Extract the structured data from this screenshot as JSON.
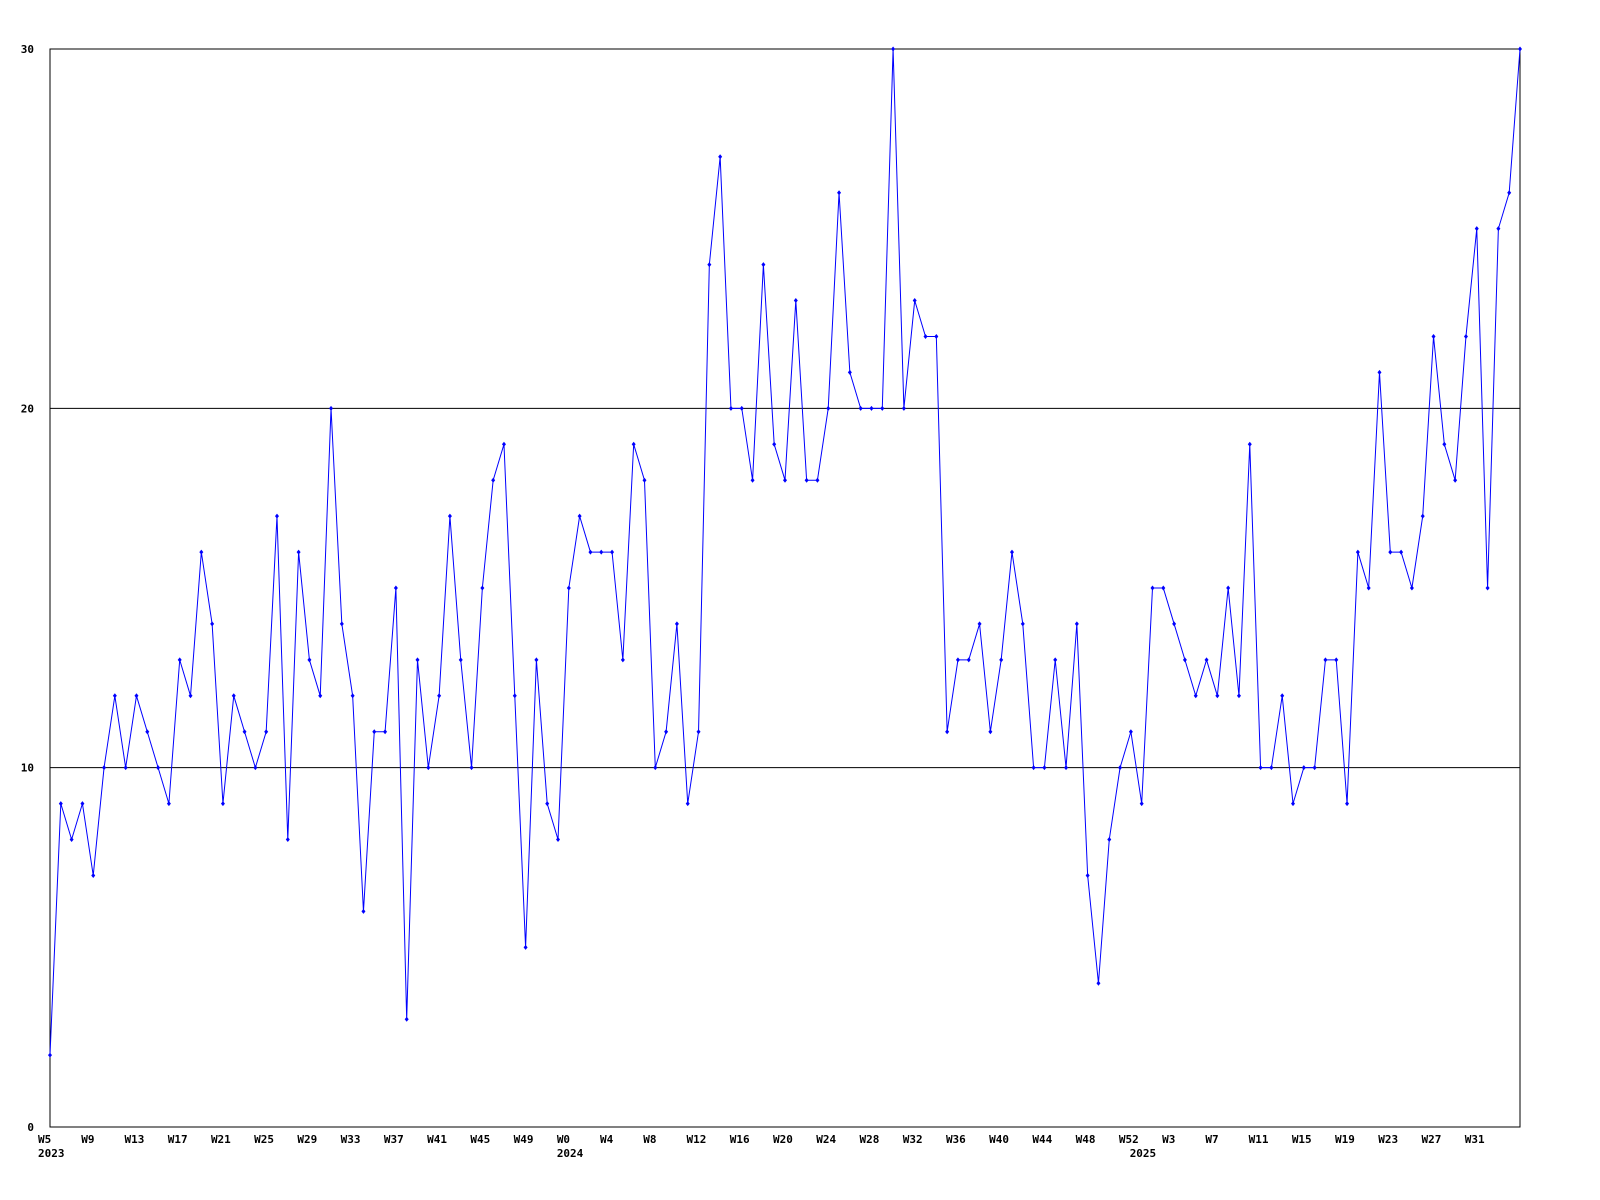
{
  "chart_data": {
    "type": "line",
    "categories": [
      "W5",
      null,
      null,
      null,
      "W9",
      null,
      null,
      null,
      "W13",
      null,
      null,
      null,
      "W17",
      null,
      null,
      null,
      "W21",
      null,
      null,
      null,
      "W25",
      null,
      null,
      null,
      "W29",
      null,
      null,
      null,
      "W33",
      null,
      null,
      null,
      "W37",
      null,
      null,
      null,
      "W41",
      null,
      null,
      null,
      "W45",
      null,
      null,
      null,
      "W49",
      null,
      null,
      null,
      "W0",
      null,
      null,
      null,
      "W4",
      null,
      null,
      null,
      "W8",
      null,
      null,
      null,
      "W12",
      null,
      null,
      null,
      "W16",
      null,
      null,
      null,
      "W20",
      null,
      null,
      null,
      "W24",
      null,
      null,
      null,
      "W28",
      null,
      null,
      null,
      "W32",
      null,
      null,
      null,
      "W36",
      null,
      null,
      null,
      "W40",
      null,
      null,
      null,
      "W44",
      null,
      null,
      null,
      "W48",
      null,
      null,
      null,
      "W52",
      null,
      null,
      null,
      "W3",
      null,
      null,
      null,
      "W7",
      null,
      null,
      null,
      "W11",
      null,
      null,
      null,
      "W15",
      null,
      null,
      null,
      "W19",
      null,
      null,
      null,
      "W23",
      null,
      null,
      null,
      "W27",
      null,
      null,
      null,
      "W31",
      null,
      null,
      null,
      null
    ],
    "years": [
      "2023",
      null,
      null,
      null,
      null,
      null,
      null,
      null,
      null,
      null,
      null,
      null,
      null,
      null,
      null,
      null,
      null,
      null,
      null,
      null,
      null,
      null,
      null,
      null,
      null,
      null,
      null,
      null,
      null,
      null,
      null,
      null,
      null,
      null,
      null,
      null,
      null,
      null,
      null,
      null,
      null,
      null,
      null,
      null,
      null,
      null,
      null,
      null,
      "2024",
      null,
      null,
      null,
      null,
      null,
      null,
      null,
      null,
      null,
      null,
      null,
      null,
      null,
      null,
      null,
      null,
      null,
      null,
      null,
      null,
      null,
      null,
      null,
      null,
      null,
      null,
      null,
      null,
      null,
      null,
      null,
      null,
      null,
      null,
      null,
      null,
      null,
      null,
      null,
      null,
      null,
      null,
      null,
      null,
      null,
      null,
      null,
      null,
      null,
      null,
      null,
      null,
      "2025",
      null,
      null,
      null,
      null,
      null,
      null,
      null,
      null,
      null,
      null,
      null,
      null,
      null,
      null,
      null,
      null,
      null,
      null,
      null,
      null,
      null,
      null,
      null,
      null,
      null,
      null,
      null,
      null,
      null,
      null,
      null,
      null,
      null,
      null,
      null
    ],
    "series": [
      {
        "color": "#0000ff",
        "values": [
          2,
          9,
          8,
          9,
          7,
          10,
          12,
          10,
          12,
          11,
          10,
          9,
          13,
          12,
          16,
          14,
          9,
          12,
          11,
          10,
          11,
          17,
          8,
          16,
          13,
          12,
          20,
          14,
          12,
          6,
          11,
          11,
          15,
          3,
          13,
          10,
          12,
          17,
          13,
          10,
          15,
          18,
          19,
          12,
          5,
          13,
          9,
          8,
          15,
          17,
          16,
          16,
          16,
          13,
          19,
          18,
          10,
          11,
          14,
          9,
          11,
          24,
          27,
          20,
          20,
          18,
          24,
          19,
          18,
          23,
          18,
          18,
          20,
          26,
          21,
          20,
          20,
          20,
          30,
          20,
          23,
          22,
          22,
          11,
          13,
          13,
          14,
          11,
          13,
          16,
          14,
          10,
          10,
          13,
          10,
          14,
          7,
          4,
          8,
          10,
          11,
          9,
          15,
          15,
          14,
          13,
          12,
          13,
          12,
          15,
          12,
          19,
          10,
          10,
          12,
          9,
          10,
          10,
          13,
          13,
          9,
          16,
          15,
          21,
          16,
          16,
          15,
          17,
          22,
          19,
          18,
          22,
          25,
          15,
          25,
          26,
          30
        ]
      }
    ],
    "ylim": [
      0,
      30
    ],
    "yticks": [
      0,
      10,
      20,
      30
    ],
    "grid": true
  }
}
